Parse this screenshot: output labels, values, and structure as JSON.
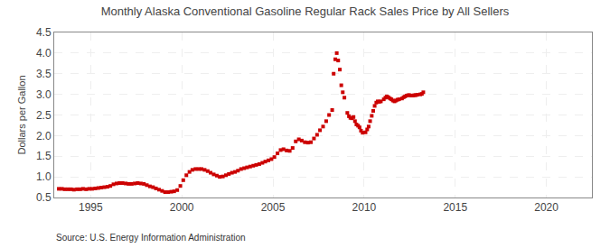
{
  "chart_data": {
    "type": "scatter",
    "title": "Monthly Alaska Conventional Gasoline Regular Rack Sales Price by All Sellers",
    "ylabel": "Dollars per Gallon",
    "annotations": [
      "Source: U.S. Energy Information Administration"
    ],
    "xlim": [
      1993.0,
      2022.5
    ],
    "ylim": [
      0.5,
      4.5
    ],
    "xticks": [
      1995,
      2000,
      2005,
      2010,
      2015,
      2020
    ],
    "yticks": [
      0.5,
      {
        "value": 1.0,
        "label": "1.0"
      },
      1.5,
      {
        "value": 2.0,
        "label": "2.0"
      },
      2.5,
      {
        "value": 3.0,
        "label": "3.0"
      },
      3.5,
      {
        "value": 4.0,
        "label": "4.0"
      },
      4.5
    ],
    "grid": true,
    "color": "#cc0000",
    "marker": "square",
    "x": [
      1993.25,
      1993.42,
      1993.58,
      1993.75,
      1993.92,
      1994.08,
      1994.25,
      1994.42,
      1994.58,
      1994.75,
      1994.92,
      1995.08,
      1995.25,
      1995.42,
      1995.58,
      1995.75,
      1995.92,
      1996.08,
      1996.25,
      1996.42,
      1996.58,
      1996.75,
      1996.92,
      1997.08,
      1997.25,
      1997.42,
      1997.58,
      1997.75,
      1997.92,
      1998.08,
      1998.25,
      1998.42,
      1998.58,
      1998.75,
      1998.92,
      1999.08,
      1999.25,
      1999.42,
      1999.58,
      1999.75,
      1999.92,
      2000.08,
      2000.25,
      2000.42,
      2000.58,
      2000.75,
      2000.92,
      2001.08,
      2001.25,
      2001.42,
      2001.58,
      2001.75,
      2001.92,
      2002.08,
      2002.25,
      2002.42,
      2002.58,
      2002.75,
      2002.92,
      2003.08,
      2003.25,
      2003.42,
      2003.58,
      2003.75,
      2003.92,
      2004.08,
      2004.25,
      2004.42,
      2004.58,
      2004.75,
      2004.92,
      2005.08,
      2005.25,
      2005.42,
      2005.58,
      2005.75,
      2005.92,
      2006.08,
      2006.25,
      2006.42,
      2006.58,
      2006.75,
      2006.92,
      2007.08,
      2007.25,
      2007.42,
      2007.58,
      2007.75,
      2007.92,
      2008.08,
      2008.25,
      2008.33,
      2008.42,
      2008.5,
      2008.58,
      2008.67,
      2008.75,
      2008.83,
      2008.92,
      2009.08,
      2009.17,
      2009.25,
      2009.33,
      2009.42,
      2009.5,
      2009.58,
      2009.67,
      2009.75,
      2009.83,
      2009.92,
      2010.08,
      2010.17,
      2010.25,
      2010.33,
      2010.42,
      2010.5,
      2010.58,
      2010.67,
      2010.75,
      2010.83,
      2010.92,
      2011.08,
      2011.17,
      2011.25,
      2011.33,
      2011.42,
      2011.5,
      2011.58,
      2011.67,
      2011.75,
      2011.83,
      2011.92,
      2012.08,
      2012.17,
      2012.25,
      2012.33,
      2012.42,
      2012.5,
      2012.58,
      2012.67,
      2012.75,
      2012.83,
      2012.92,
      2013.08,
      2013.17,
      2013.25
    ],
    "values": [
      0.71,
      0.71,
      0.7,
      0.7,
      0.7,
      0.69,
      0.7,
      0.7,
      0.71,
      0.7,
      0.71,
      0.71,
      0.72,
      0.73,
      0.74,
      0.75,
      0.76,
      0.78,
      0.82,
      0.84,
      0.85,
      0.85,
      0.84,
      0.83,
      0.83,
      0.84,
      0.85,
      0.84,
      0.83,
      0.8,
      0.77,
      0.75,
      0.72,
      0.69,
      0.66,
      0.63,
      0.63,
      0.64,
      0.65,
      0.68,
      0.78,
      0.92,
      1.04,
      1.12,
      1.17,
      1.19,
      1.19,
      1.19,
      1.17,
      1.14,
      1.1,
      1.06,
      1.03,
      1.0,
      1.01,
      1.04,
      1.07,
      1.1,
      1.12,
      1.15,
      1.19,
      1.21,
      1.23,
      1.25,
      1.27,
      1.29,
      1.31,
      1.34,
      1.37,
      1.4,
      1.43,
      1.48,
      1.57,
      1.65,
      1.67,
      1.64,
      1.63,
      1.7,
      1.86,
      1.91,
      1.88,
      1.84,
      1.83,
      1.84,
      1.93,
      2.02,
      2.13,
      2.22,
      2.35,
      2.5,
      2.62,
      3.5,
      3.85,
      4.0,
      3.82,
      3.6,
      3.22,
      3.05,
      2.92,
      2.55,
      2.47,
      2.43,
      2.42,
      2.45,
      2.35,
      2.27,
      2.24,
      2.2,
      2.12,
      2.07,
      2.08,
      2.15,
      2.22,
      2.35,
      2.48,
      2.6,
      2.72,
      2.8,
      2.83,
      2.82,
      2.83,
      2.88,
      2.92,
      2.95,
      2.93,
      2.9,
      2.88,
      2.85,
      2.83,
      2.85,
      2.87,
      2.88,
      2.9,
      2.93,
      2.95,
      2.97,
      2.98,
      2.98,
      2.97,
      2.97,
      2.98,
      2.98,
      2.99,
      3.0,
      3.01,
      3.05
    ]
  }
}
